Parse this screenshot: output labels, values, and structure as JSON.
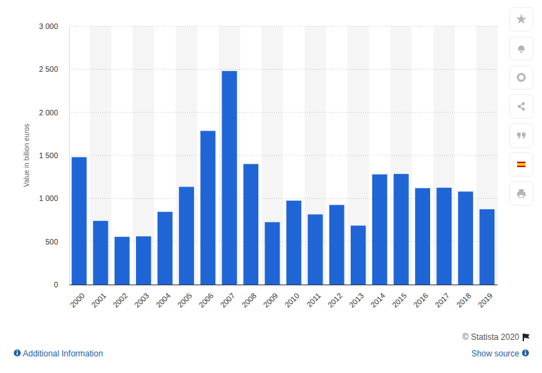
{
  "chart_data": {
    "type": "bar",
    "y_label": "Value in billion euros",
    "categories": [
      "2000",
      "2001",
      "2002",
      "2003",
      "2004",
      "2005",
      "2006",
      "2007",
      "2008",
      "2009",
      "2010",
      "2011",
      "2012",
      "2013",
      "2014",
      "2015",
      "2016",
      "2017",
      "2018",
      "2019"
    ],
    "values": [
      1480,
      740,
      555,
      560,
      845,
      1135,
      1785,
      2480,
      1400,
      725,
      975,
      815,
      925,
      685,
      1280,
      1285,
      1120,
      1125,
      1080,
      875
    ],
    "color": "#1f65d6",
    "ylim": [
      0,
      3000
    ],
    "yticks": [
      0,
      500,
      {
        "value": 1000,
        "label": "1 000"
      },
      {
        "value": 1500,
        "label": "1 500"
      },
      {
        "value": 2000,
        "label": "2 000"
      },
      {
        "value": 2500,
        "label": "2 500"
      },
      {
        "value": 3000,
        "label": "3 000"
      }
    ],
    "grid": true
  },
  "footer": {
    "copyright": "© Statista 2020",
    "additional_information": "Additional Information",
    "show_source": "Show source"
  }
}
